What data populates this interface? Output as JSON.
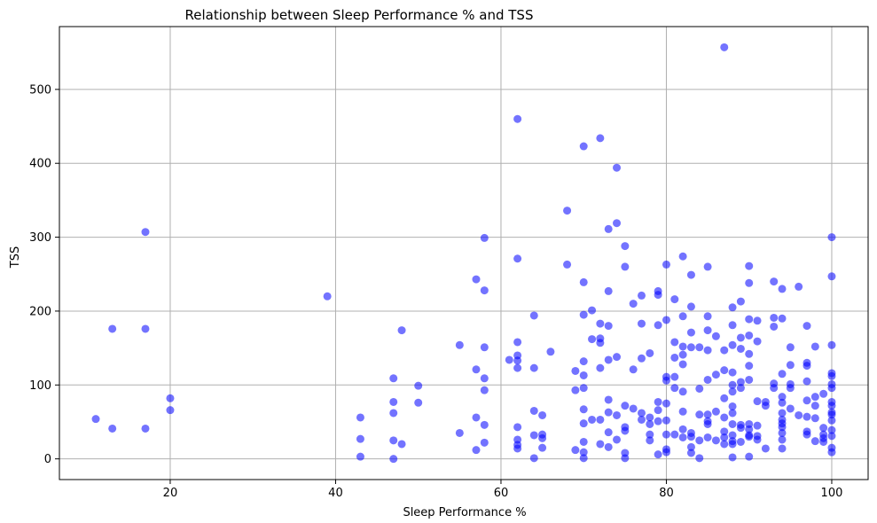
{
  "chart_data": {
    "type": "scatter",
    "title": "Relationship between Sleep Performance % and TSS",
    "xlabel": "Sleep Performance %",
    "ylabel": "TSS",
    "xlim": [
      6.6,
      104.4
    ],
    "ylim": [
      -28,
      585
    ],
    "xticks": [
      20,
      40,
      60,
      80,
      100
    ],
    "yticks": [
      0,
      100,
      200,
      300,
      400,
      500
    ],
    "grid": true,
    "marker_color": "#0000ff",
    "marker_alpha": 0.55,
    "points": [
      [
        11,
        54
      ],
      [
        13,
        176
      ],
      [
        13,
        41
      ],
      [
        17,
        307
      ],
      [
        17,
        176
      ],
      [
        17,
        41
      ],
      [
        20,
        82
      ],
      [
        20,
        66
      ],
      [
        39,
        220
      ],
      [
        43,
        56
      ],
      [
        43,
        27
      ],
      [
        43,
        3
      ],
      [
        47,
        109
      ],
      [
        47,
        77
      ],
      [
        47,
        62
      ],
      [
        47,
        25
      ],
      [
        47,
        0
      ],
      [
        48,
        174
      ],
      [
        48,
        20
      ],
      [
        50,
        99
      ],
      [
        50,
        76
      ],
      [
        55,
        154
      ],
      [
        55,
        35
      ],
      [
        57,
        243
      ],
      [
        57,
        121
      ],
      [
        57,
        56
      ],
      [
        57,
        12
      ],
      [
        58,
        299
      ],
      [
        58,
        228
      ],
      [
        58,
        151
      ],
      [
        58,
        109
      ],
      [
        58,
        93
      ],
      [
        58,
        46
      ],
      [
        58,
        22
      ],
      [
        61,
        134
      ],
      [
        62,
        460
      ],
      [
        62,
        271
      ],
      [
        62,
        158
      ],
      [
        62,
        140
      ],
      [
        62,
        133
      ],
      [
        62,
        123
      ],
      [
        62,
        43
      ],
      [
        62,
        26
      ],
      [
        62,
        19
      ],
      [
        62,
        14
      ],
      [
        64,
        194
      ],
      [
        64,
        123
      ],
      [
        64,
        65
      ],
      [
        64,
        32
      ],
      [
        64,
        1
      ],
      [
        65,
        59
      ],
      [
        65,
        33
      ],
      [
        65,
        28
      ],
      [
        65,
        15
      ],
      [
        66,
        145
      ],
      [
        68,
        336
      ],
      [
        68,
        263
      ],
      [
        69,
        119
      ],
      [
        69,
        93
      ],
      [
        69,
        12
      ],
      [
        70,
        423
      ],
      [
        70,
        239
      ],
      [
        70,
        195
      ],
      [
        70,
        132
      ],
      [
        70,
        113
      ],
      [
        70,
        96
      ],
      [
        70,
        67
      ],
      [
        70,
        48
      ],
      [
        70,
        23
      ],
      [
        70,
        9
      ],
      [
        70,
        1
      ],
      [
        71,
        201
      ],
      [
        71,
        162
      ],
      [
        71,
        53
      ],
      [
        72,
        434
      ],
      [
        72,
        183
      ],
      [
        72,
        163
      ],
      [
        72,
        157
      ],
      [
        72,
        123
      ],
      [
        72,
        53
      ],
      [
        72,
        20
      ],
      [
        73,
        311
      ],
      [
        73,
        227
      ],
      [
        73,
        180
      ],
      [
        73,
        134
      ],
      [
        73,
        80
      ],
      [
        73,
        63
      ],
      [
        73,
        36
      ],
      [
        73,
        16
      ],
      [
        74,
        394
      ],
      [
        74,
        319
      ],
      [
        74,
        138
      ],
      [
        74,
        59
      ],
      [
        74,
        26
      ],
      [
        75,
        288
      ],
      [
        75,
        260
      ],
      [
        75,
        72
      ],
      [
        75,
        43
      ],
      [
        75,
        38
      ],
      [
        75,
        8
      ],
      [
        75,
        1
      ],
      [
        76,
        210
      ],
      [
        76,
        121
      ],
      [
        76,
        68
      ],
      [
        77,
        221
      ],
      [
        77,
        183
      ],
      [
        77,
        136
      ],
      [
        77,
        62
      ],
      [
        77,
        53
      ],
      [
        78,
        143
      ],
      [
        78,
        56
      ],
      [
        78,
        47
      ],
      [
        78,
        33
      ],
      [
        78,
        25
      ],
      [
        79,
        227
      ],
      [
        79,
        222
      ],
      [
        79,
        181
      ],
      [
        79,
        77
      ],
      [
        79,
        66
      ],
      [
        79,
        51
      ],
      [
        79,
        6
      ],
      [
        80,
        263
      ],
      [
        80,
        188
      ],
      [
        80,
        111
      ],
      [
        80,
        106
      ],
      [
        80,
        75
      ],
      [
        80,
        52
      ],
      [
        80,
        33
      ],
      [
        80,
        13
      ],
      [
        80,
        9
      ],
      [
        81,
        216
      ],
      [
        81,
        158
      ],
      [
        81,
        137
      ],
      [
        81,
        111
      ],
      [
        81,
        96
      ],
      [
        81,
        33
      ],
      [
        82,
        274
      ],
      [
        82,
        193
      ],
      [
        82,
        152
      ],
      [
        82,
        141
      ],
      [
        82,
        128
      ],
      [
        82,
        91
      ],
      [
        82,
        64
      ],
      [
        82,
        40
      ],
      [
        82,
        29
      ],
      [
        83,
        249
      ],
      [
        83,
        206
      ],
      [
        83,
        171
      ],
      [
        83,
        151
      ],
      [
        83,
        35
      ],
      [
        83,
        30
      ],
      [
        83,
        16
      ],
      [
        83,
        8
      ],
      [
        84,
        151
      ],
      [
        84,
        95
      ],
      [
        84,
        60
      ],
      [
        84,
        25
      ],
      [
        84,
        1
      ],
      [
        85,
        260
      ],
      [
        85,
        193
      ],
      [
        85,
        174
      ],
      [
        85,
        147
      ],
      [
        85,
        107
      ],
      [
        85,
        60
      ],
      [
        85,
        51
      ],
      [
        85,
        47
      ],
      [
        85,
        29
      ],
      [
        86,
        166
      ],
      [
        86,
        114
      ],
      [
        86,
        64
      ],
      [
        86,
        25
      ],
      [
        87,
        557
      ],
      [
        87,
        147
      ],
      [
        87,
        120
      ],
      [
        87,
        82
      ],
      [
        87,
        56
      ],
      [
        87,
        37
      ],
      [
        87,
        29
      ],
      [
        87,
        20
      ],
      [
        88,
        205
      ],
      [
        88,
        181
      ],
      [
        88,
        154
      ],
      [
        88,
        117
      ],
      [
        88,
        100
      ],
      [
        88,
        91
      ],
      [
        88,
        71
      ],
      [
        88,
        62
      ],
      [
        88,
        47
      ],
      [
        88,
        32
      ],
      [
        88,
        24
      ],
      [
        88,
        20
      ],
      [
        88,
        2
      ],
      [
        89,
        213
      ],
      [
        89,
        164
      ],
      [
        89,
        149
      ],
      [
        89,
        104
      ],
      [
        89,
        96
      ],
      [
        89,
        46
      ],
      [
        89,
        42
      ],
      [
        89,
        23
      ],
      [
        90,
        261
      ],
      [
        90,
        238
      ],
      [
        90,
        189
      ],
      [
        90,
        167
      ],
      [
        90,
        142
      ],
      [
        90,
        126
      ],
      [
        90,
        107
      ],
      [
        90,
        47
      ],
      [
        90,
        40
      ],
      [
        90,
        32
      ],
      [
        90,
        30
      ],
      [
        90,
        3
      ],
      [
        91,
        187
      ],
      [
        91,
        159
      ],
      [
        91,
        78
      ],
      [
        91,
        45
      ],
      [
        91,
        31
      ],
      [
        91,
        26
      ],
      [
        92,
        77
      ],
      [
        92,
        72
      ],
      [
        92,
        14
      ],
      [
        93,
        240
      ],
      [
        93,
        191
      ],
      [
        93,
        179
      ],
      [
        93,
        102
      ],
      [
        93,
        96
      ],
      [
        94,
        230
      ],
      [
        94,
        190
      ],
      [
        94,
        115
      ],
      [
        94,
        84
      ],
      [
        94,
        76
      ],
      [
        94,
        62
      ],
      [
        94,
        53
      ],
      [
        94,
        48
      ],
      [
        94,
        43
      ],
      [
        94,
        35
      ],
      [
        94,
        26
      ],
      [
        94,
        14
      ],
      [
        95,
        151
      ],
      [
        95,
        127
      ],
      [
        95,
        101
      ],
      [
        95,
        96
      ],
      [
        95,
        68
      ],
      [
        96,
        233
      ],
      [
        96,
        59
      ],
      [
        97,
        180
      ],
      [
        97,
        130
      ],
      [
        97,
        126
      ],
      [
        97,
        105
      ],
      [
        97,
        79
      ],
      [
        97,
        57
      ],
      [
        97,
        37
      ],
      [
        97,
        33
      ],
      [
        98,
        152
      ],
      [
        98,
        84
      ],
      [
        98,
        72
      ],
      [
        98,
        55
      ],
      [
        98,
        24
      ],
      [
        99,
        88
      ],
      [
        99,
        42
      ],
      [
        99,
        33
      ],
      [
        99,
        28
      ],
      [
        99,
        23
      ],
      [
        100,
        300
      ],
      [
        100,
        247
      ],
      [
        100,
        154
      ],
      [
        100,
        116
      ],
      [
        100,
        112
      ],
      [
        100,
        101
      ],
      [
        100,
        96
      ],
      [
        100,
        77
      ],
      [
        100,
        72
      ],
      [
        100,
        63
      ],
      [
        100,
        60
      ],
      [
        100,
        52
      ],
      [
        100,
        39
      ],
      [
        100,
        31
      ],
      [
        100,
        15
      ],
      [
        100,
        9
      ]
    ]
  }
}
